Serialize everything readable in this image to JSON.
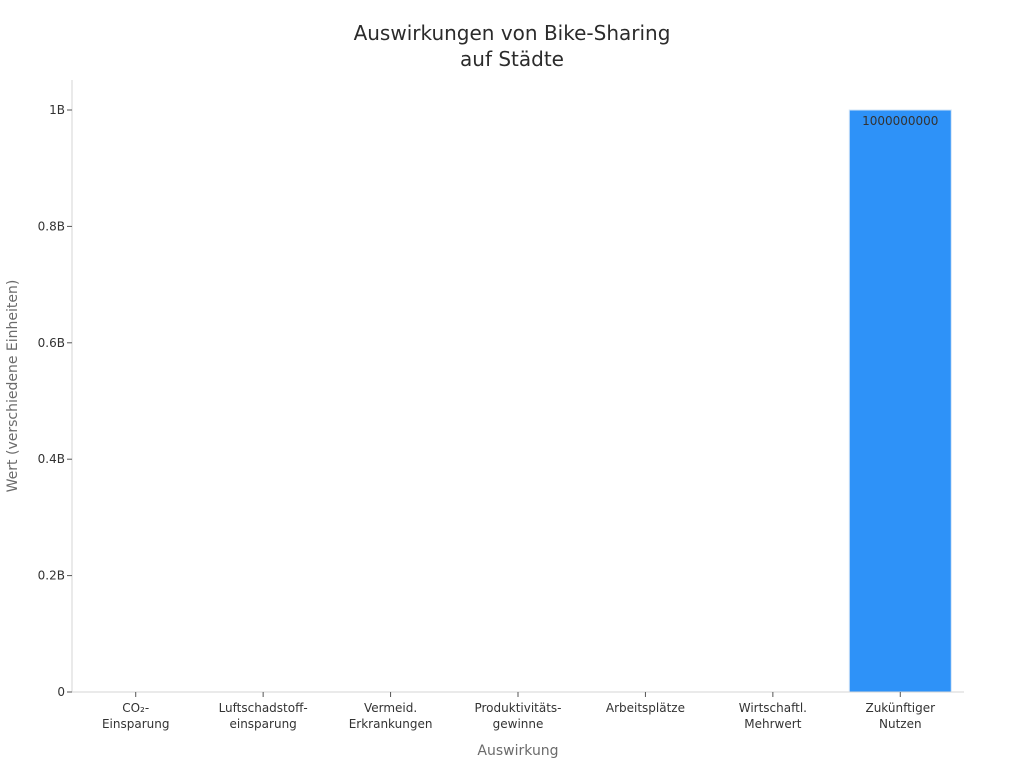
{
  "chart_data": {
    "type": "bar",
    "title_lines": [
      "Auswirkungen von Bike-Sharing",
      "auf Städte"
    ],
    "xlabel": "Auswirkung",
    "ylabel": "Wert (verschiedene Einheiten)",
    "categories": [
      [
        "CO₂-",
        "Einsparung"
      ],
      [
        "Luftschadstoff-",
        "einsparung"
      ],
      [
        "Vermeid.",
        "Erkrankungen"
      ],
      [
        "Produktivitäts-",
        "gewinne"
      ],
      [
        "Arbeitsplätze"
      ],
      [
        "Wirtschaftl.",
        "Mehrwert"
      ],
      [
        "Zukünftiger",
        "Nutzen"
      ]
    ],
    "values": [
      0,
      0,
      0,
      0,
      0,
      0,
      1000000000
    ],
    "data_labels": [
      "",
      "",
      "",
      "",
      "",
      "",
      "1000000000"
    ],
    "ylim": [
      0,
      1000000000
    ],
    "yticks": [
      0,
      200000000,
      400000000,
      600000000,
      800000000,
      1000000000
    ],
    "ytick_labels": [
      "0",
      "0.2B",
      "0.4B",
      "0.6B",
      "0.8B",
      "1B"
    ],
    "bar_color": "#2e92f8",
    "grid": false,
    "legend": "none"
  }
}
